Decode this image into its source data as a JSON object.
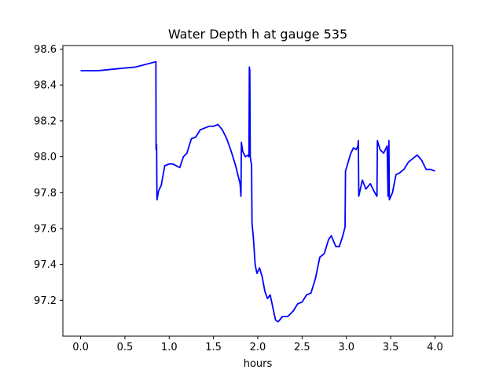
{
  "chart_data": {
    "type": "line",
    "title": "Water Depth h at gauge 535",
    "xlabel": "hours",
    "ylabel": "",
    "xlim": [
      -0.2,
      4.2
    ],
    "ylim": [
      97.0,
      98.62
    ],
    "xticks": [
      0.0,
      0.5,
      1.0,
      1.5,
      2.0,
      2.5,
      3.0,
      3.5,
      4.0
    ],
    "xtick_labels": [
      "0.0",
      "0.5",
      "1.0",
      "1.5",
      "2.0",
      "2.5",
      "3.0",
      "3.5",
      "4.0"
    ],
    "yticks": [
      97.2,
      97.4,
      97.6,
      97.8,
      98.0,
      98.2,
      98.4,
      98.6
    ],
    "ytick_labels": [
      "97.2",
      "97.4",
      "97.6",
      "97.8",
      "98.0",
      "98.2",
      "98.4",
      "98.6"
    ],
    "grid": false,
    "series": [
      {
        "color": "#0000ff",
        "points": [
          [
            0.0,
            98.48
          ],
          [
            0.2,
            98.48
          ],
          [
            0.4,
            98.49
          ],
          [
            0.62,
            98.5
          ],
          [
            0.85,
            98.53
          ],
          [
            0.852,
            98.04
          ],
          [
            0.858,
            98.07
          ],
          [
            0.862,
            97.76
          ],
          [
            0.88,
            97.81
          ],
          [
            0.91,
            97.84
          ],
          [
            0.95,
            97.95
          ],
          [
            1.0,
            97.96
          ],
          [
            1.04,
            97.96
          ],
          [
            1.08,
            97.95
          ],
          [
            1.12,
            97.94
          ],
          [
            1.16,
            98.0
          ],
          [
            1.2,
            98.02
          ],
          [
            1.25,
            98.1
          ],
          [
            1.3,
            98.11
          ],
          [
            1.35,
            98.15
          ],
          [
            1.4,
            98.16
          ],
          [
            1.45,
            98.17
          ],
          [
            1.5,
            98.17
          ],
          [
            1.55,
            98.18
          ],
          [
            1.6,
            98.15
          ],
          [
            1.65,
            98.1
          ],
          [
            1.7,
            98.03
          ],
          [
            1.75,
            97.95
          ],
          [
            1.8,
            97.85
          ],
          [
            1.81,
            97.78
          ],
          [
            1.815,
            98.08
          ],
          [
            1.83,
            98.03
          ],
          [
            1.86,
            98.0
          ],
          [
            1.89,
            98.01
          ],
          [
            1.9,
            98.0
          ],
          [
            1.905,
            98.5
          ],
          [
            1.91,
            98.48
          ],
          [
            1.915,
            98.0
          ],
          [
            1.93,
            97.95
          ],
          [
            1.935,
            97.63
          ],
          [
            1.95,
            97.55
          ],
          [
            1.97,
            97.4
          ],
          [
            1.99,
            97.35
          ],
          [
            2.02,
            97.38
          ],
          [
            2.05,
            97.33
          ],
          [
            2.08,
            97.25
          ],
          [
            2.11,
            97.21
          ],
          [
            2.14,
            97.23
          ],
          [
            2.17,
            97.16
          ],
          [
            2.2,
            97.09
          ],
          [
            2.23,
            97.08
          ],
          [
            2.28,
            97.11
          ],
          [
            2.34,
            97.11
          ],
          [
            2.4,
            97.14
          ],
          [
            2.45,
            97.18
          ],
          [
            2.5,
            97.19
          ],
          [
            2.55,
            97.23
          ],
          [
            2.6,
            97.24
          ],
          [
            2.65,
            97.32
          ],
          [
            2.7,
            97.44
          ],
          [
            2.75,
            97.46
          ],
          [
            2.8,
            97.54
          ],
          [
            2.83,
            97.56
          ],
          [
            2.88,
            97.5
          ],
          [
            2.92,
            97.5
          ],
          [
            2.96,
            97.56
          ],
          [
            2.985,
            97.61
          ],
          [
            2.99,
            97.92
          ],
          [
            3.02,
            97.97
          ],
          [
            3.05,
            98.02
          ],
          [
            3.08,
            98.05
          ],
          [
            3.11,
            98.04
          ],
          [
            3.13,
            98.06
          ],
          [
            3.135,
            98.09
          ],
          [
            3.14,
            97.78
          ],
          [
            3.18,
            97.87
          ],
          [
            3.22,
            97.82
          ],
          [
            3.27,
            97.85
          ],
          [
            3.32,
            97.8
          ],
          [
            3.345,
            97.78
          ],
          [
            3.35,
            98.09
          ],
          [
            3.38,
            98.04
          ],
          [
            3.42,
            98.02
          ],
          [
            3.46,
            98.06
          ],
          [
            3.47,
            97.78
          ],
          [
            3.48,
            98.09
          ],
          [
            3.485,
            97.76
          ],
          [
            3.52,
            97.8
          ],
          [
            3.56,
            97.9
          ],
          [
            3.6,
            97.91
          ],
          [
            3.65,
            97.93
          ],
          [
            3.7,
            97.97
          ],
          [
            3.75,
            97.99
          ],
          [
            3.8,
            98.01
          ],
          [
            3.85,
            97.98
          ],
          [
            3.9,
            97.93
          ],
          [
            3.95,
            97.93
          ],
          [
            4.0,
            97.92
          ]
        ]
      }
    ]
  }
}
